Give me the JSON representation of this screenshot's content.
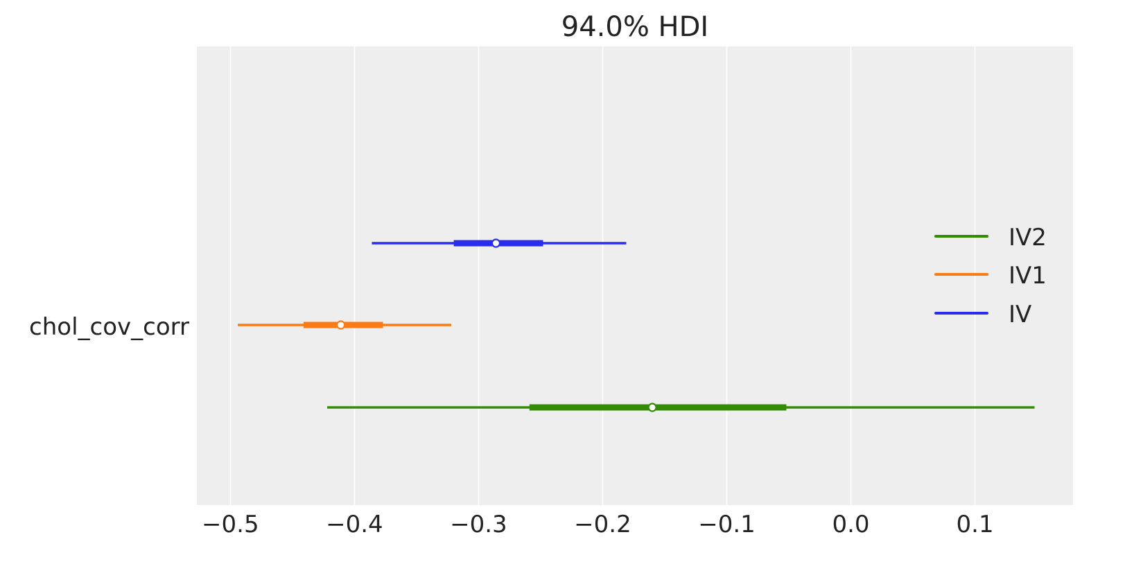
{
  "chart_data": {
    "type": "forest",
    "title": "94.0% HDI",
    "ylabel_tick": "chol_cov_corr",
    "xlim": [
      -0.527,
      0.179
    ],
    "xticks": [
      -0.5,
      -0.4,
      -0.3,
      -0.2,
      -0.1,
      0.0,
      0.1
    ],
    "xtick_labels": [
      "−0.5",
      "−0.4",
      "−0.3",
      "−0.2",
      "−0.1",
      "0.0",
      "0.1"
    ],
    "grid": "x",
    "legend_position": "right",
    "series": [
      {
        "name": "IV2",
        "color": "#328c06",
        "hdi_low": -0.422,
        "hdi_high": 0.148,
        "iqr_low": -0.259,
        "iqr_high": -0.052,
        "point": -0.16
      },
      {
        "name": "IV1",
        "color": "#fa7c17",
        "hdi_low": -0.494,
        "hdi_high": -0.322,
        "iqr_low": -0.441,
        "iqr_high": -0.377,
        "point": -0.411
      },
      {
        "name": "IV",
        "color": "#2a2eec",
        "hdi_low": -0.386,
        "hdi_high": -0.181,
        "iqr_low": -0.32,
        "iqr_high": -0.248,
        "point": -0.286
      }
    ]
  }
}
